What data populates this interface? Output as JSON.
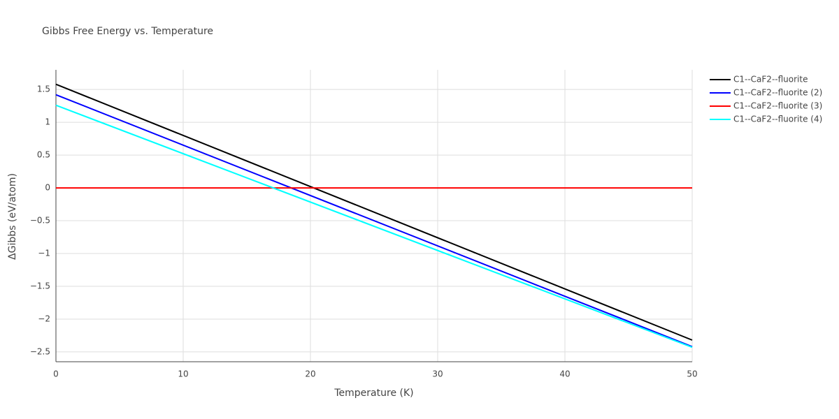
{
  "chart_data": {
    "type": "line",
    "title": "Gibbs Free Energy vs. Temperature",
    "x_label": "Temperature (K)",
    "y_label": "ΔGibbs (eV/atom)",
    "x": [
      0,
      50
    ],
    "series": [
      {
        "name": "C1--CaF2--fluorite",
        "color": "#000000",
        "values": [
          1.58,
          -2.32
        ]
      },
      {
        "name": "C1--CaF2--fluorite (2)",
        "color": "#0000ff",
        "values": [
          1.42,
          -2.42
        ]
      },
      {
        "name": "C1--CaF2--fluorite (3)",
        "color": "#ff0000",
        "values": [
          0,
          0
        ]
      },
      {
        "name": "C1--CaF2--fluorite (4)",
        "color": "#00ffff",
        "values": [
          1.26,
          -2.43
        ]
      }
    ],
    "xlim": [
      0,
      50
    ],
    "xticks": [
      0,
      10,
      20,
      30,
      40,
      50
    ],
    "ylim": [
      -2.65,
      1.8
    ],
    "yticks": [
      {
        "value": -2.5,
        "label": "−2.5"
      },
      {
        "value": -2,
        "label": "−2"
      },
      {
        "value": -1.5,
        "label": "−1.5"
      },
      {
        "value": -1,
        "label": "−1"
      },
      {
        "value": -0.5,
        "label": "−0.5"
      },
      0,
      0.5,
      1,
      1.5
    ],
    "grid": true,
    "legend": "top-right"
  }
}
